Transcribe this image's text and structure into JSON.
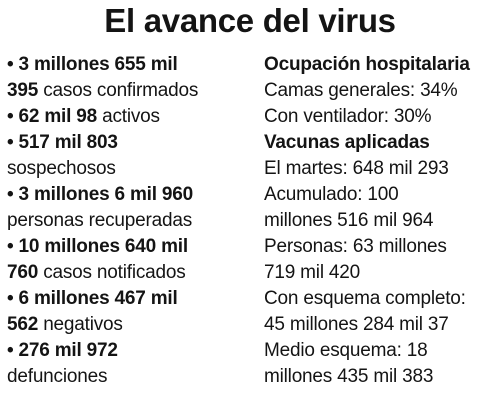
{
  "title": "El avance del virus",
  "left": {
    "items": [
      {
        "line1": "3 millones 655 mil",
        "line2_bold": "395",
        "line2_text": " casos confirmados"
      },
      {
        "line1_bold": "62 mil 98",
        "line1_text": " activos"
      },
      {
        "line1": "517 mil 803",
        "line2_text": "sospechosos"
      },
      {
        "line1": "3 millones 6 mil 960",
        "line2_text": "personas recuperadas"
      },
      {
        "line1": "10 millones 640 mil",
        "line2_bold": "760",
        "line2_text": " casos notificados"
      },
      {
        "line1": "6 millones 467 mil",
        "line2_bold": "562",
        "line2_text": " negativos"
      },
      {
        "line1": "276 mil 972",
        "line2_text": "defunciones"
      }
    ]
  },
  "right": {
    "hospital": {
      "heading": "Ocupación hospitalaria",
      "camas": "Camas generales: 34%",
      "ventilador": "Con ventilador: 30%"
    },
    "vacunas": {
      "heading": "Vacunas aplicadas",
      "martes": "El martes: 648 mil 293",
      "acumulado_1": "Acumulado: 100",
      "acumulado_2": "millones 516 mil 964",
      "personas_1": "Personas: 63 millones",
      "personas_2": "719 mil 420",
      "completo_1": "Con esquema completo:",
      "completo_2": "45 millones 284 mil 37",
      "medio_1": "Medio esquema: 18",
      "medio_2": "millones 435 mil 383"
    }
  }
}
